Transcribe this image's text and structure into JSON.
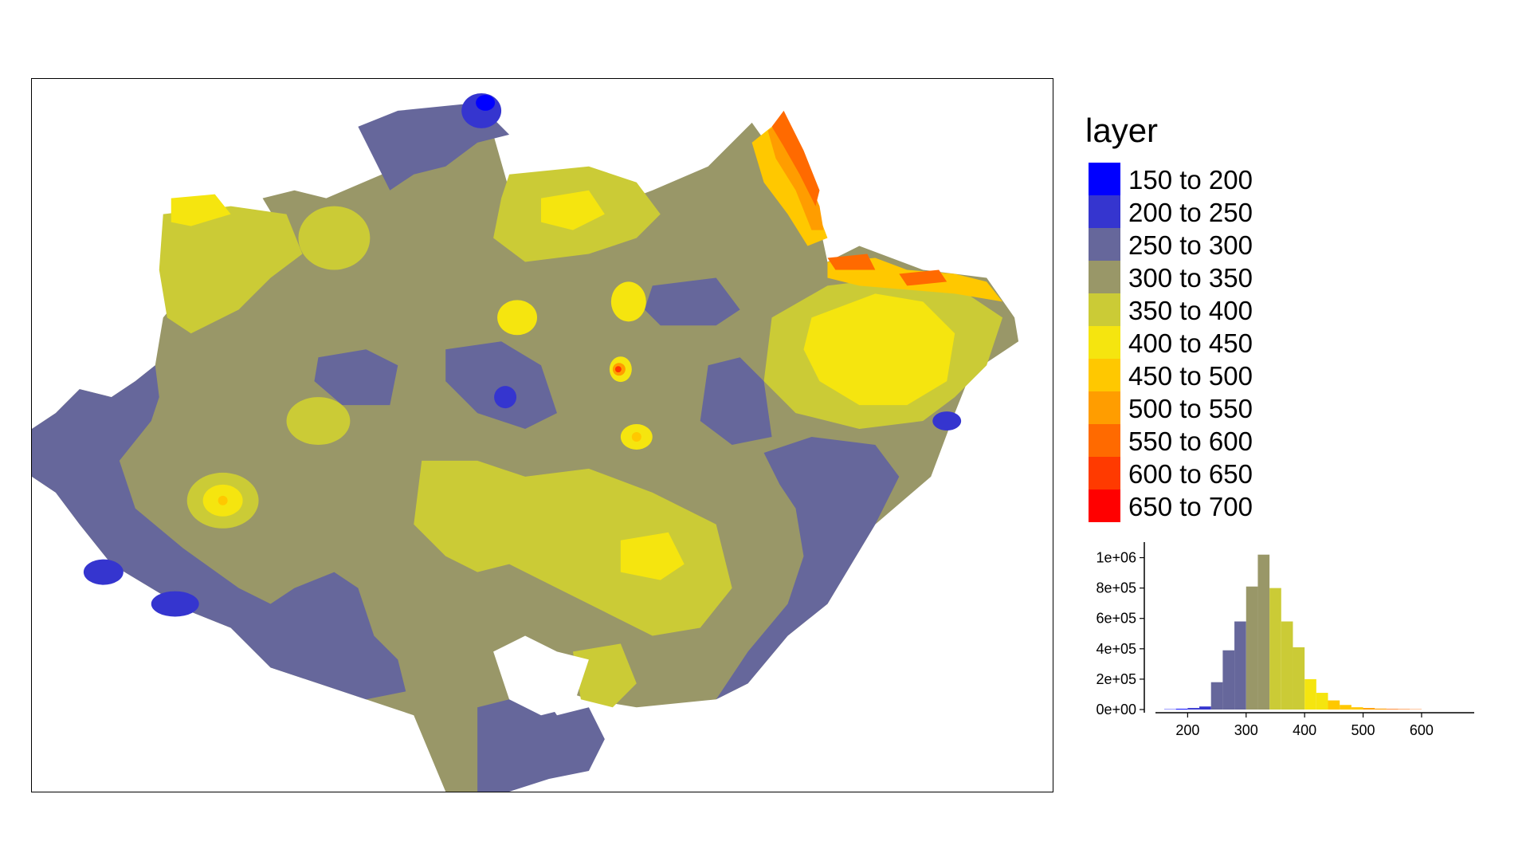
{
  "legend": {
    "title": "layer",
    "items": [
      {
        "label": "150 to 200",
        "color": "#0000ff"
      },
      {
        "label": "200 to 250",
        "color": "#3535cf"
      },
      {
        "label": "250 to 300",
        "color": "#66679b"
      },
      {
        "label": "300 to 350",
        "color": "#999768"
      },
      {
        "label": "350 to 400",
        "color": "#cbcb36"
      },
      {
        "label": "400 to 450",
        "color": "#f5e50f"
      },
      {
        "label": "450 to 500",
        "color": "#ffc800"
      },
      {
        "label": "500 to 550",
        "color": "#ff9d00"
      },
      {
        "label": "550 to 600",
        "color": "#ff6a00"
      },
      {
        "label": "600 to 650",
        "color": "#ff3a00"
      },
      {
        "label": "650 to 700",
        "color": "#ff0000"
      }
    ]
  },
  "chart_data": {
    "type": "bar",
    "x": [
      170,
      190,
      210,
      230,
      250,
      270,
      290,
      310,
      330,
      350,
      370,
      390,
      410,
      430,
      450,
      470,
      490,
      510,
      530,
      550,
      570,
      590
    ],
    "values": [
      2000,
      5000,
      10000,
      20000,
      180000,
      390000,
      580000,
      810000,
      1020000,
      800000,
      580000,
      410000,
      200000,
      110000,
      60000,
      30000,
      15000,
      10000,
      6000,
      4000,
      3000,
      2000
    ],
    "bin_width": 20,
    "xticks": [
      "200",
      "300",
      "400",
      "500",
      "600"
    ],
    "xtick_values": [
      200,
      300,
      400,
      500,
      600
    ],
    "yticks": [
      "0e+00",
      "2e+05",
      "4e+05",
      "6e+05",
      "8e+05",
      "1e+06"
    ],
    "ytick_values": [
      0,
      200000,
      400000,
      600000,
      800000,
      1000000
    ],
    "xlim": [
      145,
      690
    ],
    "ylim": [
      0,
      1050000
    ]
  }
}
